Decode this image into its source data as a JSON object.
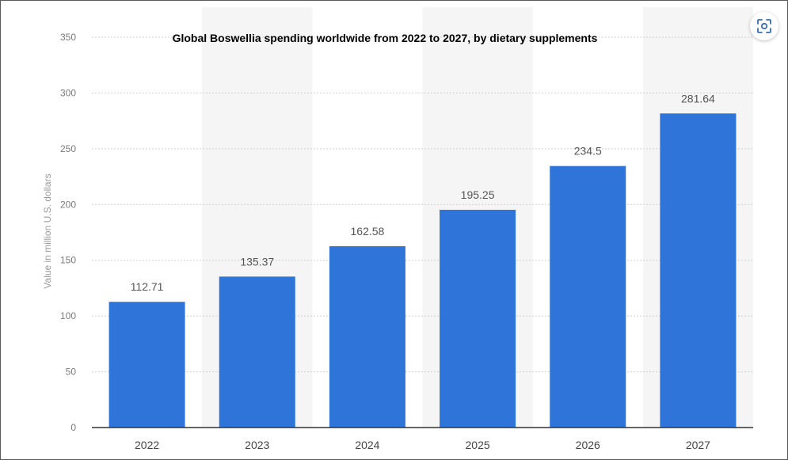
{
  "colors": {
    "bar": "#2f74d9",
    "band": "#f5f5f5",
    "grid": "#d0d0d0",
    "axis": "#333333"
  },
  "scan_button": {
    "icon": "visual-search-icon",
    "color": "#3a6fb0"
  },
  "chart_data": {
    "type": "bar",
    "title": "Global Boswellia spending worldwide from 2022 to 2027, by dietary supplements",
    "xlabel": "",
    "ylabel": "Value in million U.S. dollars",
    "categories": [
      "2022",
      "2023",
      "2024",
      "2025",
      "2026",
      "2027"
    ],
    "values": [
      112.71,
      135.37,
      162.58,
      195.25,
      234.5,
      281.64
    ],
    "value_labels": [
      "112.71",
      "135.37",
      "162.58",
      "195.25",
      "234.5",
      "281.64"
    ],
    "ylim": [
      0,
      350
    ],
    "yticks": [
      0,
      50,
      100,
      150,
      200,
      250,
      300,
      350
    ],
    "grid": true,
    "legend": "none"
  }
}
